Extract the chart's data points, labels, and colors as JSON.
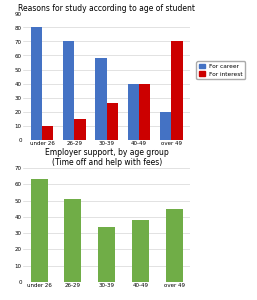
{
  "chart1": {
    "title": "Reasons for study according to age of student",
    "categories": [
      "under 26",
      "26-29",
      "30-39",
      "40-49",
      "over 49"
    ],
    "career": [
      80,
      70,
      58,
      40,
      20
    ],
    "interest": [
      10,
      15,
      26,
      40,
      70
    ],
    "career_color": "#4472C4",
    "interest_color": "#CC0000",
    "ylim": [
      0,
      90
    ],
    "yticks": [
      0,
      10,
      20,
      30,
      40,
      50,
      60,
      70,
      80,
      90
    ],
    "legend_labels": [
      "For career",
      "For interest"
    ]
  },
  "chart2": {
    "title": "Employer support, by age group\n(Time off and help with fees)",
    "categories": [
      "under 26",
      "26-29",
      "30-39",
      "40-49",
      "over 49"
    ],
    "values": [
      63,
      51,
      34,
      38,
      45
    ],
    "bar_color": "#70AD47",
    "ylim": [
      0,
      70
    ],
    "yticks": [
      0,
      10,
      20,
      30,
      40,
      50,
      60,
      70
    ]
  },
  "background_color": "#FFFFFF",
  "title_fontsize": 5.5,
  "tick_fontsize": 4.0,
  "legend_fontsize": 4.2
}
